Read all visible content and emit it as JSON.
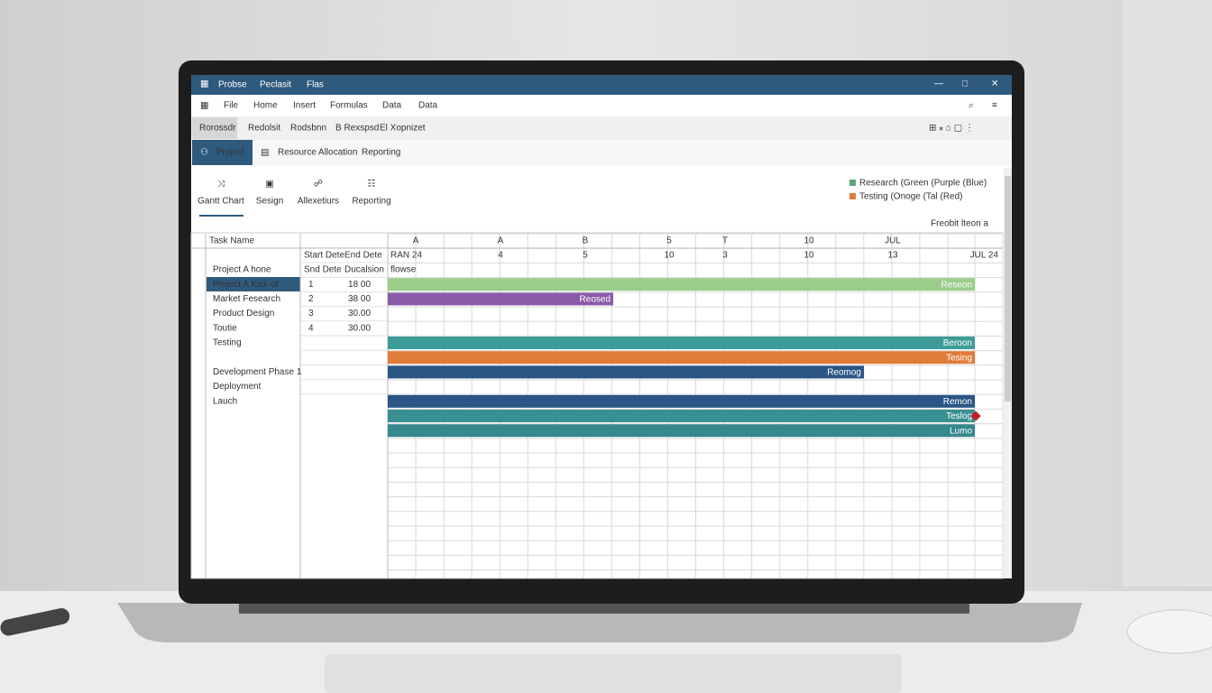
{
  "window": {
    "title_items": [
      "Probse",
      "Peclasit",
      "Flas"
    ]
  },
  "menu": [
    "File",
    "Home",
    "Insert",
    "Formulas",
    "Data",
    "Data"
  ],
  "ribbon_tabs": [
    "Rorossdr",
    "Redolsit",
    "Rodsbnn",
    "B Rexspsd",
    "El Xopnizet"
  ],
  "tabs": [
    "Project",
    "Resource Allocation",
    "Reporting"
  ],
  "tools": [
    "Gantt Chart",
    "Sesign",
    "Allexetiurs",
    "Reporting"
  ],
  "legend": [
    "Research (Green (Purple (Blue)",
    "Testing (Onoge (Tal (Red)"
  ],
  "status": "Freobit lteon a",
  "grid": {
    "task_header": "Task Name",
    "col_letters": [
      "A",
      "A",
      "B",
      "5",
      "T",
      "10",
      "JUL"
    ],
    "timeline": [
      "RAN 24",
      "4",
      "5",
      "10",
      "3",
      "10",
      "13",
      "JUL 24"
    ],
    "tasks": [
      "Project A hone",
      "Project A Kick-of",
      "Market Fesearch",
      "Product Design",
      "Toutie",
      "Testing",
      "Development Phase 1",
      "Deployment",
      "Lauch"
    ],
    "detail_headers": [
      [
        "Start Dete",
        "End Dete"
      ],
      [
        "Snd Dete",
        "Ducalsion"
      ]
    ],
    "detail_rows": [
      [
        "1",
        "18 00"
      ],
      [
        "2",
        "38 00"
      ],
      [
        "3",
        "30.00"
      ],
      [
        "4",
        "30.00"
      ]
    ],
    "note": "flowse",
    "bar_labels": [
      "Reseon",
      "Reosed",
      "Beroon",
      "Tesing",
      "Reomog",
      "Remon",
      "Teslog",
      "Lumo"
    ]
  }
}
